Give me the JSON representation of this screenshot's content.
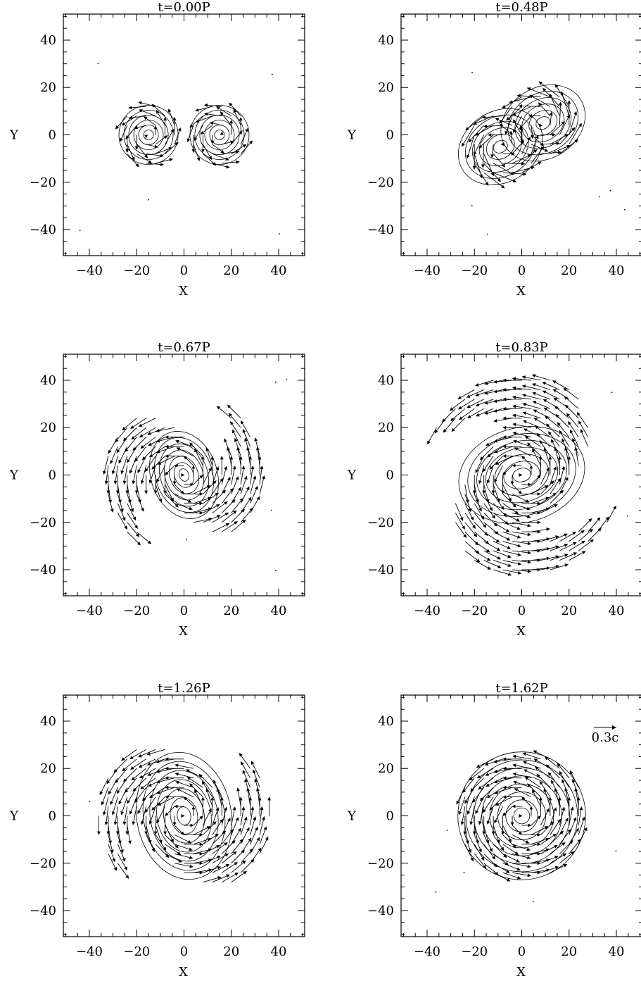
{
  "chart_data": [
    {
      "type": "vector-field",
      "title": "t=0.00P",
      "xlabel": "X",
      "ylabel": "Y",
      "xlim": [
        -51,
        51
      ],
      "ylim": [
        -51,
        51
      ],
      "xticks": [
        "−40",
        "−20",
        "0",
        "20",
        "40"
      ],
      "yticks": [
        "−40",
        "−20",
        "0",
        "20",
        "40"
      ],
      "structure": "binary",
      "sources": [
        {
          "x": -15,
          "y": 0,
          "radius": 12.5
        },
        {
          "x": 15,
          "y": 0,
          "radius": 12.5
        }
      ],
      "rotation": 0
    },
    {
      "type": "vector-field",
      "title": "t=0.48P",
      "xlabel": "X",
      "ylabel": "Y",
      "xlim": [
        -51,
        51
      ],
      "ylim": [
        -51,
        51
      ],
      "xticks": [
        "−40",
        "−20",
        "0",
        "20",
        "40"
      ],
      "yticks": [
        "−40",
        "−20",
        "0",
        "20",
        "40"
      ],
      "structure": "merging",
      "sources": [
        {
          "x": -9,
          "y": -5,
          "radius": 15
        },
        {
          "x": 9,
          "y": 5,
          "radius": 15
        }
      ],
      "rotation": 0.55
    },
    {
      "type": "vector-field",
      "title": "t=0.67P",
      "xlabel": "X",
      "ylabel": "Y",
      "xlim": [
        -51,
        51
      ],
      "ylim": [
        -51,
        51
      ],
      "xticks": [
        "−40",
        "−20",
        "0",
        "20",
        "40"
      ],
      "yticks": [
        "−40",
        "−20",
        "0",
        "20",
        "40"
      ],
      "structure": "spiral",
      "core_radius": 14,
      "arm_extent": 34,
      "rotation": 1.9
    },
    {
      "type": "vector-field",
      "title": "t=0.83P",
      "xlabel": "X",
      "ylabel": "Y",
      "xlim": [
        -51,
        51
      ],
      "ylim": [
        -51,
        51
      ],
      "xticks": [
        "−40",
        "−20",
        "0",
        "20",
        "40"
      ],
      "yticks": [
        "−40",
        "−20",
        "0",
        "20",
        "40"
      ],
      "structure": "spiral",
      "core_radius": 20,
      "arm_extent": 42,
      "rotation": 0.25
    },
    {
      "type": "vector-field",
      "title": "t=1.26P",
      "xlabel": "X",
      "ylabel": "Y",
      "xlim": [
        -51,
        51
      ],
      "ylim": [
        -51,
        51
      ],
      "xticks": [
        "−40",
        "−20",
        "0",
        "20",
        "40"
      ],
      "yticks": [
        "−40",
        "−20",
        "0",
        "20",
        "40"
      ],
      "structure": "spiral",
      "core_radius": 20,
      "arm_extent": 36,
      "rotation": 1.75
    },
    {
      "type": "vector-field",
      "title": "t=1.62P",
      "xlabel": "X",
      "ylabel": "Y",
      "xlim": [
        -51,
        51
      ],
      "ylim": [
        -51,
        51
      ],
      "xticks": [
        "−40",
        "−20",
        "0",
        "20",
        "40"
      ],
      "yticks": [
        "−40",
        "−20",
        "0",
        "20",
        "40"
      ],
      "structure": "disk",
      "core_radius": 27,
      "rotation": 0,
      "scale_label": "0.3c"
    }
  ]
}
